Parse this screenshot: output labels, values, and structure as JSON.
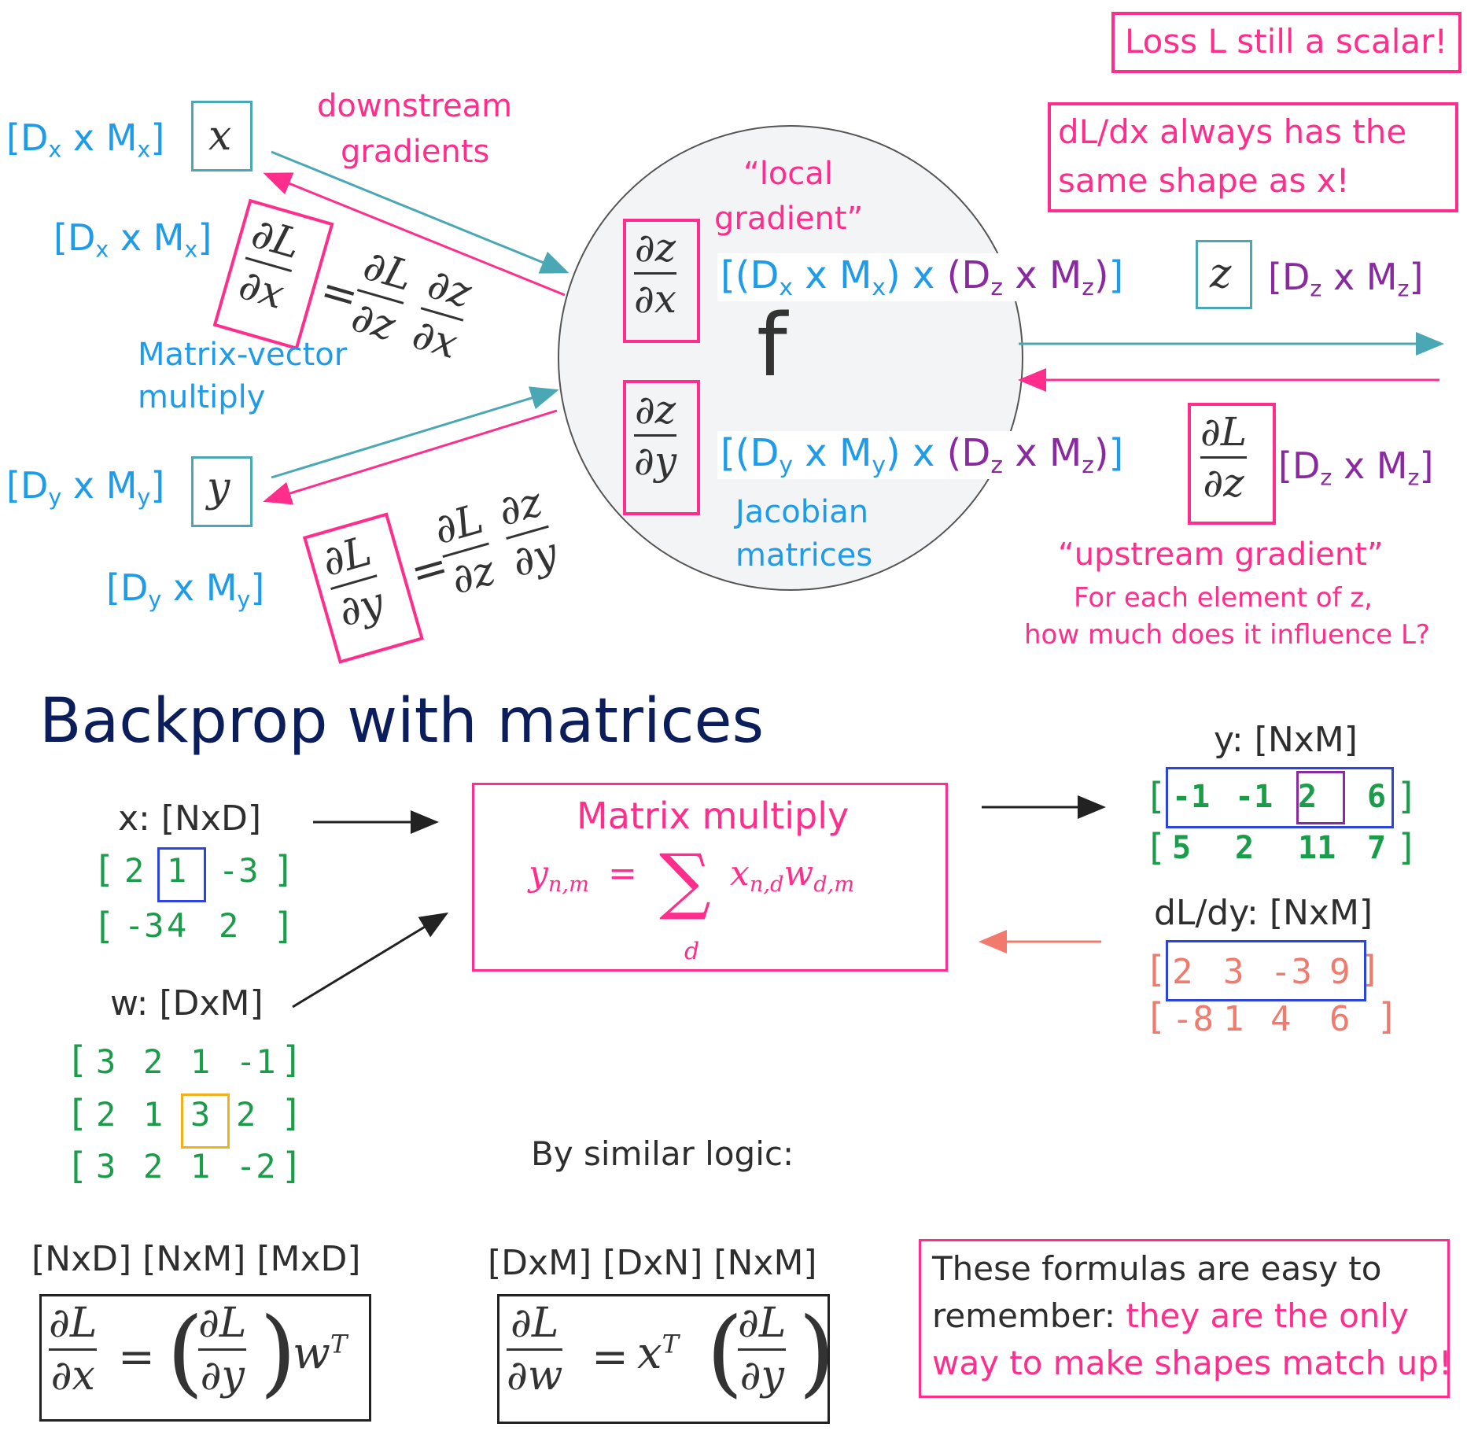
{
  "top": {
    "loss_note": "Loss L still a scalar!",
    "shape_note_1": "dL/dx always has the",
    "shape_note_2": "same shape as x!",
    "downstream_1": "downstream",
    "downstream_2": "gradients",
    "local_1": "“local",
    "local_2": "gradient”",
    "matvec_1": "Matrix-vector",
    "matvec_2": "multiply",
    "jacobian_1": "Jacobian",
    "jacobian_2": "matrices",
    "upstream": "“upstream gradient”",
    "upstream_q1": "For each element of z,",
    "upstream_q2": "how much does it influence L?",
    "f_label": "f",
    "x_var": "x",
    "y_var": "y",
    "z_var": "z",
    "dim_x_1": "[Dx x Mx]",
    "dim_x_2": "[Dx x Mx]",
    "dim_y_1": "[Dy x My]",
    "dim_y_2": "[Dy x My]",
    "dim_z_1": "[Dz x Mz]",
    "dim_z_2": "[Dz x Mz]",
    "jac_x": "[(Dx x Mx) x (Dz x Mz)]",
    "jac_y": "[(Dy x My) x (Dz x Mz)]",
    "dz": "∂z",
    "dx": "∂x",
    "dy": "∂y",
    "dL": "∂L",
    "dL_eq": "∂L",
    "eq_sign": "="
  },
  "bottom": {
    "title": "Backprop with matrices",
    "x_label": "x: [NxD]",
    "w_label": "w: [DxM]",
    "y_label": "y: [NxM]",
    "dLdy_label": "dL/dy: [NxM]",
    "mm_title": "Matrix multiply",
    "mm_formula_lhs": "y",
    "mm_formula_lhs_sub": "n,m",
    "mm_formula_eq": "=",
    "mm_sigma": "∑",
    "mm_sigma_sub": "d",
    "mm_rhs_x": "x",
    "mm_rhs_x_sub": "n,d",
    "mm_rhs_w": "w",
    "mm_rhs_w_sub": "d,m",
    "x_matrix": [
      [
        "2",
        "1",
        "-3"
      ],
      [
        "-3",
        "4",
        "2"
      ]
    ],
    "w_matrix": [
      [
        "3",
        "2",
        "1",
        "-1"
      ],
      [
        "2",
        "1",
        "3",
        "2"
      ],
      [
        "3",
        "2",
        "1",
        "-2"
      ]
    ],
    "y_matrix": [
      [
        "-1",
        "-1",
        "2",
        "6"
      ],
      [
        "5",
        "2",
        "11",
        "7"
      ]
    ],
    "dLdy_matrix": [
      [
        "2",
        "3",
        "-3",
        "9"
      ],
      [
        "-8",
        "1",
        "4",
        "6"
      ]
    ],
    "similar": "By similar logic:",
    "shapes_dx": "[NxD] [NxM] [MxD]",
    "shapes_dw": "[DxM] [DxN] [NxM]",
    "formula_dx_rhs_T": "T",
    "formula_dx_w": "w",
    "formula_dw_x": "x",
    "formula_dw_T": "T",
    "note_1": "These formulas are easy to",
    "note_2a": "remember: ",
    "note_2b": "they are the only",
    "note_3": "way to make shapes match up!",
    "lbr": "[",
    "rbr": "]"
  },
  "colors": {
    "blue": "#1e9be9",
    "pink": "#ff2e8c",
    "purple": "#8a2aa0",
    "teal": "#4aa8b5",
    "green": "#1a9c4a",
    "salmon": "#f27a6d",
    "navy": "#0b1e5b"
  }
}
